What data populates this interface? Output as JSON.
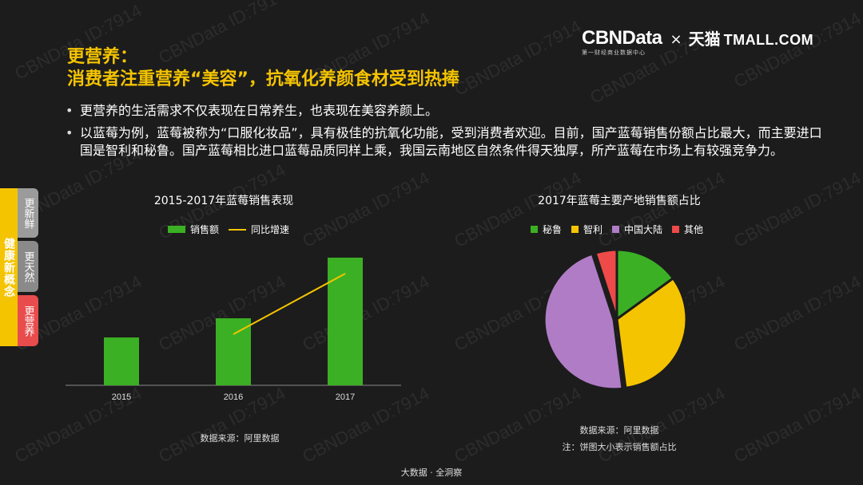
{
  "watermark": "CBNData ID:7914",
  "header": {
    "title_line1": "更营养：",
    "title_line2": "消费者注重营养“美容”，抗氧化养颜食材受到热捧"
  },
  "logo": {
    "brand": "CBNData",
    "brand_sub": "第一财经商业数据中心",
    "separator": "×",
    "partner_cn": "天猫",
    "partner_en": "TMALL.COM"
  },
  "bullets": [
    "更营养的生活需求不仅表现在日常养生，也表现在美容养颜上。",
    "以蓝莓为例，蓝莓被称为“口服化妆品”，具有极佳的抗氧化功能，受到消费者欢迎。目前，国产蓝莓销售份额占比最大，而主要进口国是智利和秘鲁。国产蓝莓相比进口蓝莓品质同样上乘，我国云南地区自然条件得天独厚，所产蓝莓在市场上有较强竞争力。"
  ],
  "sidebar": {
    "main": "健康新概念",
    "tabs": [
      "更新鲜",
      "更天然",
      "更营养"
    ]
  },
  "colors": {
    "accent": "#f5c400",
    "bar_green": "#3bb024",
    "line_yellow": "#f5c400",
    "peru": "#3bb024",
    "chile": "#f5c400",
    "china": "#b07cc6",
    "other": "#ee4a4a"
  },
  "chart_data": [
    {
      "type": "bar",
      "title": "2015-2017年蓝莓销售表现",
      "categories": [
        "2015",
        "2016",
        "2017"
      ],
      "series": [
        {
          "name": "销售额",
          "type": "bar",
          "values": [
            0.3,
            0.42,
            0.8
          ]
        },
        {
          "name": "同比增速",
          "type": "line",
          "values": [
            null,
            0.32,
            0.7
          ]
        }
      ],
      "ylim": [
        0,
        1
      ],
      "grid": false,
      "y_axis_shown": false,
      "legend_position": "top-center",
      "source": "数据来源：阿里数据"
    },
    {
      "type": "pie",
      "title": "2017年蓝莓主要产地销售额占比",
      "labels": [
        "秘鲁",
        "智利",
        "中国大陆",
        "其他"
      ],
      "values": [
        15,
        33,
        47,
        5
      ],
      "legend_position": "top-center",
      "source": "数据来源：阿里数据",
      "note": "注：饼图大小表示销售额占比"
    }
  ],
  "footer": "大数据 · 全洞察"
}
